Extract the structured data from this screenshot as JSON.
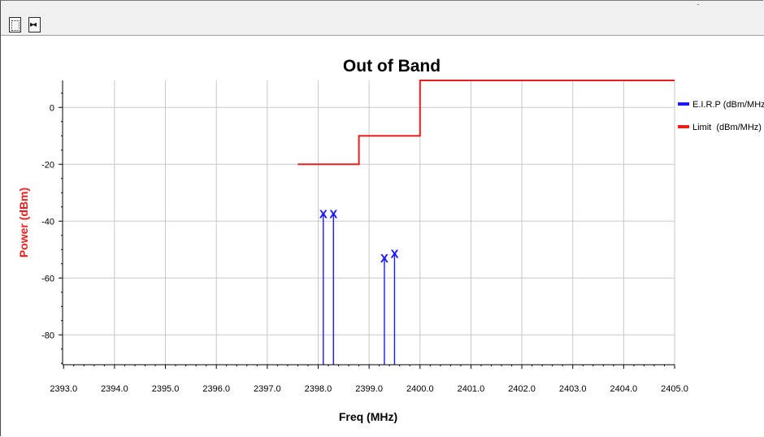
{
  "toolbar": {
    "buttons": [
      {
        "name": "select-tool",
        "icon": "dotted-rectangle-select-icon"
      },
      {
        "name": "pan-tool",
        "icon": "pan-arrows-icon"
      }
    ]
  },
  "chart_data": {
    "type": "line",
    "title": "Out of Band",
    "xlabel": "Freq (MHz)",
    "ylabel": "Power (dBm)",
    "xlim": [
      2392.98,
      2405.0
    ],
    "ylim": [
      -90.5,
      9.5
    ],
    "x_ticks": [
      "2393.0",
      "2394.0",
      "2395.0",
      "2396.0",
      "2397.0",
      "2398.0",
      "2399.0",
      "2400.0",
      "2401.0",
      "2402.0",
      "2403.0",
      "2404.0",
      "2405.0"
    ],
    "y_ticks": [
      "0",
      "-20",
      "-40",
      "-60",
      "-80"
    ],
    "grid": true,
    "legend_position": "right",
    "series": [
      {
        "name": "E.I.R.P (dBm/MHz)",
        "kind": "stem",
        "color": "#1a1aff",
        "marker": "X",
        "points": [
          {
            "x": 2398.1,
            "y": -37.5
          },
          {
            "x": 2398.3,
            "y": -37.5
          },
          {
            "x": 2399.3,
            "y": -53.0
          },
          {
            "x": 2399.5,
            "y": -51.5
          }
        ]
      },
      {
        "name": "Limit  (dBm/MHz)",
        "kind": "step",
        "color": "#ee1c1c",
        "points": [
          {
            "x": 2397.6,
            "y": -20
          },
          {
            "x": 2398.8,
            "y": -20
          },
          {
            "x": 2398.8,
            "y": -10
          },
          {
            "x": 2400.0,
            "y": -10
          },
          {
            "x": 2400.0,
            "y": 10
          },
          {
            "x": 2405.0,
            "y": 10
          }
        ]
      }
    ]
  }
}
